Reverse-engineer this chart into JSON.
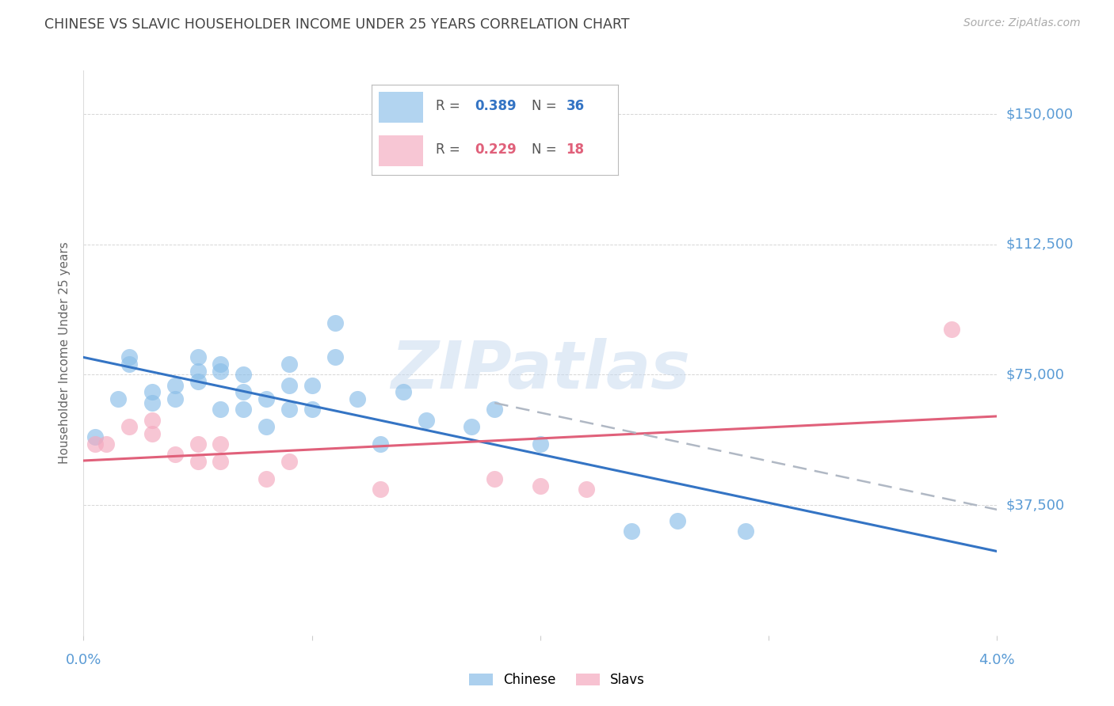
{
  "title": "CHINESE VS SLAVIC HOUSEHOLDER INCOME UNDER 25 YEARS CORRELATION CHART",
  "source": "Source: ZipAtlas.com",
  "ylabel": "Householder Income Under 25 years",
  "ytick_labels": [
    "$150,000",
    "$112,500",
    "$75,000",
    "$37,500"
  ],
  "ytick_values": [
    150000,
    112500,
    75000,
    37500
  ],
  "ymin": 0,
  "ymax": 162500,
  "xmin": 0.0,
  "xmax": 0.04,
  "watermark": "ZIPatlas",
  "chinese_color": "#89bde8",
  "slavic_color": "#f4a8be",
  "trend_blue_color": "#3474c4",
  "trend_pink_color": "#e0607a",
  "trend_dashed_color": "#b0b8c4",
  "chinese_x": [
    0.0005,
    0.0015,
    0.002,
    0.002,
    0.003,
    0.003,
    0.004,
    0.004,
    0.005,
    0.005,
    0.005,
    0.006,
    0.006,
    0.006,
    0.007,
    0.007,
    0.007,
    0.008,
    0.008,
    0.009,
    0.009,
    0.009,
    0.01,
    0.01,
    0.011,
    0.011,
    0.012,
    0.013,
    0.014,
    0.015,
    0.017,
    0.018,
    0.02,
    0.024,
    0.026,
    0.029
  ],
  "chinese_y": [
    57000,
    68000,
    80000,
    78000,
    70000,
    67000,
    72000,
    68000,
    80000,
    76000,
    73000,
    78000,
    76000,
    65000,
    75000,
    70000,
    65000,
    68000,
    60000,
    78000,
    72000,
    65000,
    72000,
    65000,
    80000,
    90000,
    68000,
    55000,
    70000,
    62000,
    60000,
    65000,
    55000,
    30000,
    33000,
    30000
  ],
  "slavic_x": [
    0.0005,
    0.001,
    0.002,
    0.003,
    0.003,
    0.004,
    0.005,
    0.005,
    0.006,
    0.006,
    0.008,
    0.009,
    0.013,
    0.018,
    0.02,
    0.022,
    0.038
  ],
  "slavic_y": [
    55000,
    55000,
    60000,
    58000,
    62000,
    52000,
    55000,
    50000,
    55000,
    50000,
    45000,
    50000,
    42000,
    45000,
    43000,
    42000,
    88000
  ],
  "background_color": "#ffffff",
  "grid_color": "#cccccc",
  "title_color": "#444444",
  "ytick_color": "#5a9bd5",
  "xtick_color": "#5a9bd5"
}
